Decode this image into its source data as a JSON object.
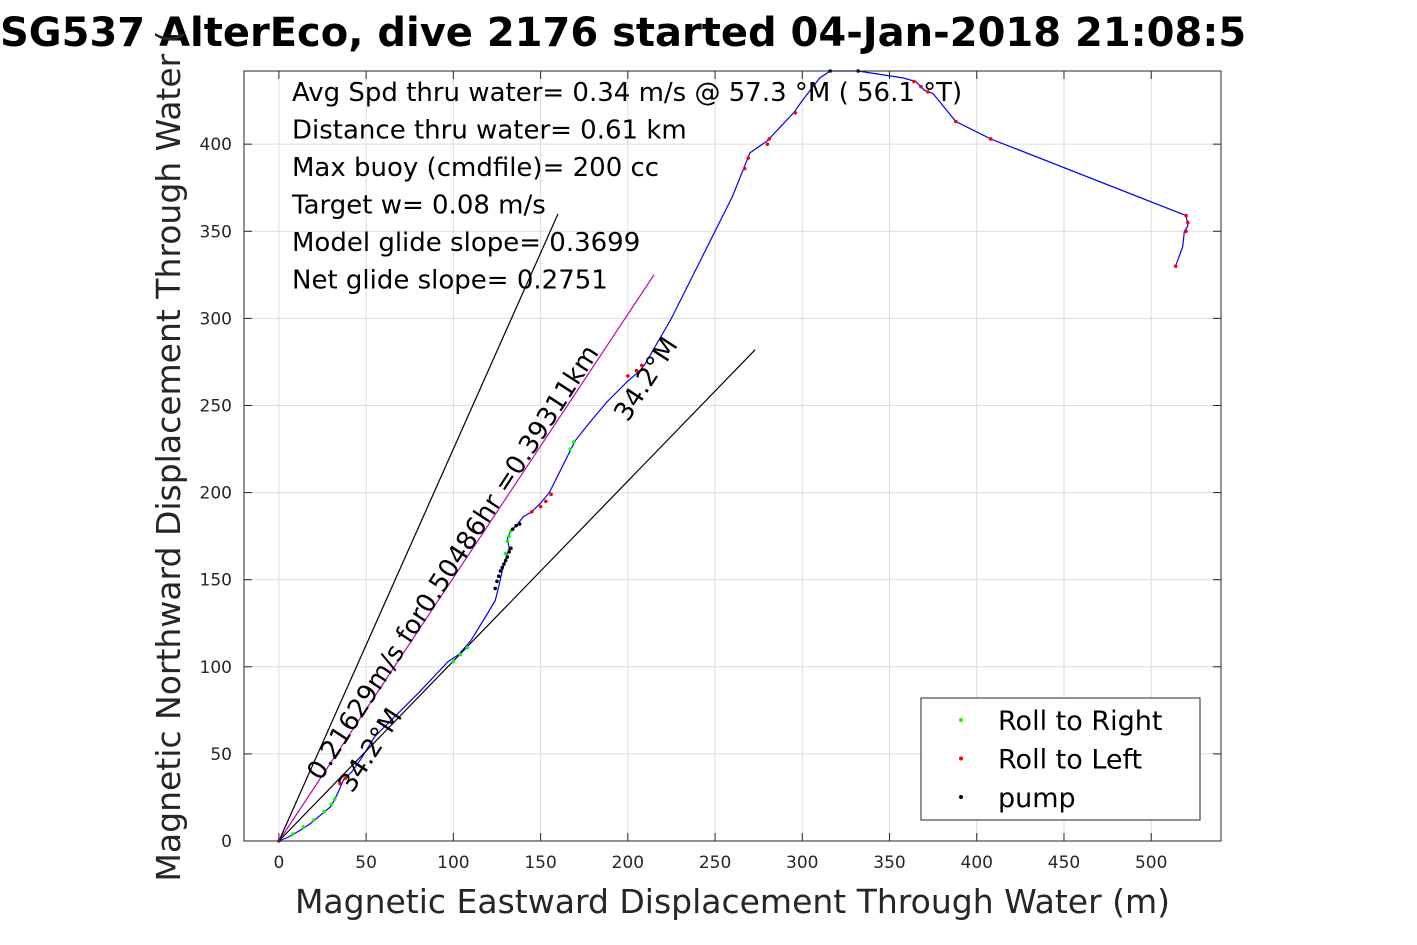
{
  "chart_data": {
    "type": "line",
    "title": "SG537 AlterEco, dive 2176 started 04-Jan-2018 21:08:5",
    "xlabel": "Magnetic Eastward Displacement Through Water (m)",
    "ylabel": "Magnetic Northward Displacement Through Water (",
    "xlim": [
      -20,
      540
    ],
    "ylim": [
      0,
      442
    ],
    "xticks": [
      0,
      50,
      100,
      150,
      200,
      250,
      300,
      350,
      400,
      450,
      500
    ],
    "yticks": [
      0,
      50,
      100,
      150,
      200,
      250,
      300,
      350,
      400
    ],
    "grid": true,
    "legend_position": "bottom-right",
    "stats_text": [
      "Avg Spd thru water=  0.34 m/s @  57.3 °M ( 56.1 °T)",
      "Distance thru water=  0.61 km",
      "Max buoy (cmdfile)= 200 cc",
      "Target w= 0.08 m/s",
      "Model glide slope= 0.3699",
      "Net glide slope= 0.2751"
    ],
    "rotated_annotations": [
      {
        "text": "0.21629m/s for0.50486hr =0.39311km",
        "x": 24,
        "y": 34,
        "angle_deg": 57
      },
      {
        "text": "34.2°M",
        "x": 200,
        "y": 240,
        "angle_deg": 57
      },
      {
        "text": "34.2°M",
        "x": 42,
        "y": 27,
        "angle_deg": 57
      }
    ],
    "series": [
      {
        "name": "",
        "color": "#0000ff",
        "points": [
          [
            0,
            0
          ],
          [
            5,
            2
          ],
          [
            12,
            6
          ],
          [
            18,
            10
          ],
          [
            24,
            15
          ],
          [
            30,
            20
          ],
          [
            34,
            28
          ],
          [
            37,
            35
          ],
          [
            42,
            40
          ],
          [
            47,
            47
          ],
          [
            55,
            60
          ],
          [
            65,
            70
          ],
          [
            80,
            85
          ],
          [
            97,
            103
          ],
          [
            103,
            107
          ],
          [
            110,
            115
          ],
          [
            118,
            128
          ],
          [
            124,
            138
          ],
          [
            126,
            146
          ],
          [
            128,
            155
          ],
          [
            130,
            162
          ],
          [
            132,
            168
          ],
          [
            131,
            174
          ],
          [
            133,
            178
          ],
          [
            136,
            181
          ],
          [
            140,
            186
          ],
          [
            145,
            189
          ],
          [
            150,
            194
          ],
          [
            155,
            200
          ],
          [
            160,
            210
          ],
          [
            167,
            224
          ],
          [
            170,
            230
          ],
          [
            178,
            240
          ],
          [
            188,
            252
          ],
          [
            200,
            264
          ],
          [
            207,
            270
          ],
          [
            210,
            274
          ],
          [
            225,
            300
          ],
          [
            245,
            340
          ],
          [
            260,
            370
          ],
          [
            270,
            395
          ],
          [
            280,
            402
          ],
          [
            295,
            418
          ],
          [
            300,
            425
          ],
          [
            310,
            438
          ],
          [
            316,
            442
          ],
          [
            332,
            442
          ],
          [
            345,
            440
          ],
          [
            358,
            438
          ],
          [
            365,
            436
          ],
          [
            370,
            431
          ],
          [
            375,
            429
          ],
          [
            388,
            413
          ],
          [
            408,
            403
          ],
          [
            520,
            359
          ],
          [
            521,
            353
          ],
          [
            519,
            350
          ],
          [
            518,
            341
          ],
          [
            514,
            330
          ]
        ]
      },
      {
        "name": "",
        "color": "#c000c0",
        "points": [
          [
            0,
            0
          ],
          [
            215,
            325
          ]
        ]
      },
      {
        "name": "",
        "color": "#000000",
        "points": [
          [
            0,
            0
          ],
          [
            160,
            360
          ]
        ]
      },
      {
        "name": "",
        "color": "#000000",
        "points": [
          [
            0,
            0
          ],
          [
            273,
            282
          ]
        ]
      },
      {
        "name": "Roll to Right",
        "color": "#00ff00",
        "type": "scatter",
        "points": [
          [
            8,
            4
          ],
          [
            14,
            8
          ],
          [
            20,
            12
          ],
          [
            26,
            17
          ],
          [
            30,
            21
          ],
          [
            32,
            24
          ],
          [
            100,
            103
          ],
          [
            104,
            107
          ],
          [
            108,
            111
          ],
          [
            131,
            172
          ],
          [
            132,
            175
          ],
          [
            133,
            178
          ],
          [
            130,
            165
          ],
          [
            167,
            225
          ],
          [
            169,
            229
          ]
        ]
      },
      {
        "name": "Roll to Left",
        "color": "#ff0000",
        "type": "scatter",
        "points": [
          [
            0,
            0
          ],
          [
            35,
            33
          ],
          [
            38,
            36
          ],
          [
            145,
            189
          ],
          [
            150,
            192
          ],
          [
            153,
            195
          ],
          [
            156,
            199
          ],
          [
            200,
            267
          ],
          [
            205,
            270
          ],
          [
            208,
            273
          ],
          [
            267,
            386
          ],
          [
            269,
            392
          ],
          [
            280,
            400
          ],
          [
            281,
            403
          ],
          [
            296,
            418
          ],
          [
            364,
            436
          ],
          [
            368,
            433
          ],
          [
            372,
            430
          ],
          [
            388,
            413
          ],
          [
            408,
            403
          ],
          [
            520,
            359
          ],
          [
            521,
            355
          ],
          [
            520,
            350
          ],
          [
            514,
            330
          ]
        ]
      },
      {
        "name": "pump",
        "color": "#000000",
        "type": "scatter",
        "points": [
          [
            124,
            145
          ],
          [
            125,
            149
          ],
          [
            126,
            152
          ],
          [
            127,
            155
          ],
          [
            128,
            157
          ],
          [
            129,
            159
          ],
          [
            130,
            161
          ],
          [
            131,
            163
          ],
          [
            132,
            166
          ],
          [
            133,
            168
          ],
          [
            134,
            179
          ],
          [
            136,
            181
          ],
          [
            138,
            182
          ],
          [
            316,
            442
          ],
          [
            332,
            442
          ]
        ]
      }
    ]
  }
}
